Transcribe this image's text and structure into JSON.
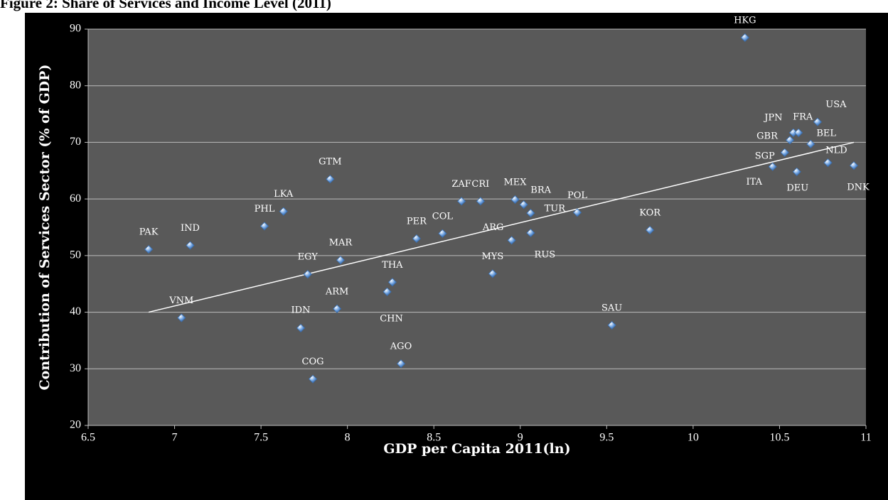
{
  "chart_data": {
    "type": "scatter",
    "title": "Figure 2: Share of Services and Income Level (2011)",
    "x_label": "GDP per Capita 2011(ln)",
    "y_label": "Contribution of Services Sector (% of GDP)",
    "labels": [
      "PAK",
      "IND",
      "VNM",
      "PHL",
      "LKA",
      "EGY",
      "IDN",
      "COG",
      "GTM",
      "MAR",
      "ARM",
      "THA",
      "CHN",
      "AGO",
      "PER",
      "COL",
      "ZAF",
      "CRI",
      "MYS",
      "ARG",
      "MEX",
      "BRA",
      "TUR",
      "RUS",
      "POL",
      "SAU",
      "KOR",
      "HKG",
      "GBR",
      "JPN",
      "FRA",
      "SGP",
      "ITA",
      "BEL",
      "USA",
      "DEU",
      "NLD",
      "DNK"
    ],
    "x": [
      6.85,
      7.09,
      7.04,
      7.52,
      7.63,
      7.77,
      7.73,
      7.8,
      7.9,
      7.96,
      7.94,
      8.26,
      8.23,
      8.31,
      8.4,
      8.55,
      8.66,
      8.77,
      8.84,
      8.95,
      8.97,
      9.02,
      9.06,
      9.06,
      9.33,
      9.53,
      9.75,
      10.3,
      10.56,
      10.58,
      10.61,
      10.53,
      10.46,
      10.68,
      10.72,
      10.6,
      10.78,
      10.93
    ],
    "values": [
      51.1,
      51.8,
      39.0,
      55.2,
      57.8,
      46.7,
      37.2,
      28.2,
      63.5,
      49.2,
      40.6,
      45.3,
      43.6,
      30.9,
      53.0,
      53.9,
      59.6,
      59.6,
      46.8,
      52.7,
      59.9,
      59.0,
      57.5,
      54.0,
      57.6,
      37.7,
      54.5,
      88.5,
      70.4,
      71.7,
      71.7,
      68.2,
      65.7,
      69.7,
      73.6,
      64.8,
      66.4,
      65.9
    ],
    "color": "#6fa2e0",
    "trendline": {
      "x": [
        6.85,
        10.93
      ],
      "y": [
        40,
        70
      ],
      "color": "#ffffff"
    },
    "xlim": [
      6.5,
      11
    ],
    "xticks": [
      6.5,
      7,
      7.5,
      8,
      8.5,
      9,
      9.5,
      10,
      10.5,
      11
    ],
    "ylim": [
      20,
      90
    ],
    "yticks": [
      20,
      30,
      40,
      50,
      60,
      70,
      80,
      90
    ],
    "grid": true
  }
}
